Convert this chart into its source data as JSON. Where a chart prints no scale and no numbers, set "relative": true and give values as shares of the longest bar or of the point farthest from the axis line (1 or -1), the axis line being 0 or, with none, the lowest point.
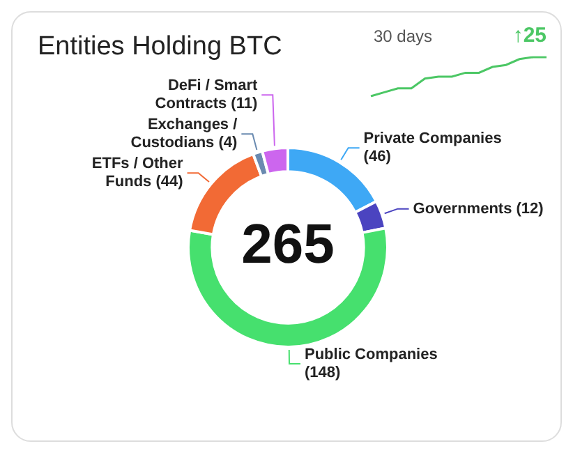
{
  "chart_data": [
    {
      "type": "donut",
      "title": "Entities Holding BTC",
      "categories": [
        "Private Companies",
        "Governments",
        "Public Companies",
        "ETFs / Other Funds",
        "Exchanges / Custodians",
        "DeFi / Smart Contracts"
      ],
      "values": [
        46,
        12,
        148,
        44,
        4,
        11
      ],
      "colors": [
        "#3ea8f5",
        "#4b44c0",
        "#46e06e",
        "#f26a35",
        "#6a8ab0",
        "#cc66ee"
      ],
      "value_labels": [
        "(46)",
        "(12)",
        "(148)",
        "(44)",
        "(4)",
        "(11)"
      ],
      "legend": false,
      "annotations": [
        "265"
      ]
    },
    {
      "type": "line",
      "title": "30 days",
      "annotations": [
        "↑25"
      ],
      "relative": true,
      "categories": [
        null,
        null,
        null,
        null,
        null,
        null,
        null,
        null,
        null,
        null,
        null,
        null,
        null,
        null
      ],
      "series": [
        {
          "color": "#4cc765",
          "values": [
            0,
            0.1,
            0.2,
            0.2,
            0.45,
            0.5,
            0.5,
            0.6,
            0.6,
            0.75,
            0.8,
            0.95,
            1,
            1
          ]
        }
      ]
    }
  ]
}
